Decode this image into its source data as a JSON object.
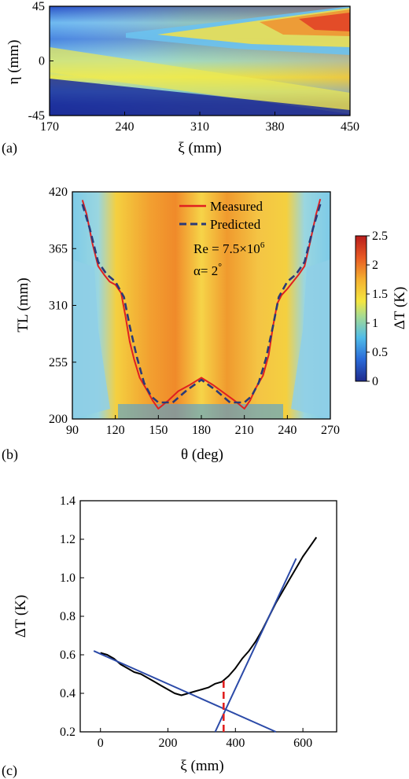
{
  "chart_data": [
    {
      "type": "heatmap",
      "panel_label": "(a)",
      "xlabel": "ξ (mm)",
      "ylabel": "η (mm)",
      "xlim": [
        170,
        450
      ],
      "ylim": [
        -45,
        45
      ],
      "x_ticks": [
        "170",
        "240",
        "310",
        "380",
        "450"
      ],
      "y_ticks": [
        "45",
        "0",
        "-45"
      ],
      "colors": {
        "low": "#1f3fa8",
        "mid": "#f0e640",
        "high": "#e03020"
      }
    },
    {
      "type": "heatmap",
      "panel_label": "(b)",
      "xlabel": "θ (deg)",
      "ylabel": "TL (mm)",
      "xlim": [
        90,
        270
      ],
      "ylim": [
        200,
        420
      ],
      "x_ticks": [
        "90",
        "120",
        "150",
        "180",
        "210",
        "240",
        "270"
      ],
      "y_ticks": [
        "420",
        "365",
        "310",
        "255",
        "200"
      ],
      "colorbar": {
        "label": "ΔT (K)",
        "range": [
          0,
          2.5
        ],
        "ticks": [
          "2.5",
          "2",
          "1.5",
          "1",
          "0.5",
          "0"
        ]
      },
      "legend": [
        "Measured",
        "Predicted"
      ],
      "annotations": [
        "Re = 7.5×10",
        "6",
        "α= 2",
        "°"
      ],
      "series": [
        {
          "name": "Measured",
          "color": "#e02020",
          "style": "solid",
          "x": [
            97,
            100,
            104,
            108,
            112,
            116,
            120,
            124,
            127,
            130,
            133,
            137,
            142,
            146,
            150,
            157,
            164,
            172,
            180,
            188,
            196,
            203,
            210,
            214,
            218,
            223,
            227,
            230,
            233,
            236,
            240,
            244,
            248,
            252,
            256,
            260,
            263
          ],
          "y": [
            412,
            398,
            370,
            348,
            340,
            333,
            330,
            322,
            300,
            275,
            258,
            240,
            228,
            218,
            210,
            218,
            227,
            233,
            240,
            233,
            225,
            218,
            210,
            218,
            230,
            242,
            262,
            290,
            312,
            320,
            326,
            333,
            340,
            348,
            372,
            398,
            413
          ]
        },
        {
          "name": "Predicted",
          "color": "#2a3a78",
          "style": "dashed",
          "x": [
            97,
            102,
            108,
            114,
            120,
            126,
            130,
            135,
            140,
            145,
            150,
            160,
            170,
            180,
            190,
            200,
            210,
            215,
            220,
            225,
            230,
            234,
            240,
            246,
            252,
            258,
            263
          ],
          "y": [
            408,
            385,
            352,
            340,
            333,
            318,
            290,
            260,
            235,
            222,
            216,
            216,
            228,
            238,
            228,
            216,
            216,
            222,
            235,
            258,
            290,
            318,
            333,
            340,
            352,
            385,
            408
          ]
        }
      ]
    },
    {
      "type": "line",
      "panel_label": "(c)",
      "xlabel": "ξ (mm)",
      "ylabel": "ΔT (K)",
      "xlim": [
        -60,
        700
      ],
      "ylim": [
        0.2,
        1.4
      ],
      "x_ticks": [
        "0",
        "200",
        "400",
        "600"
      ],
      "y_ticks": [
        "1.4",
        "1.2",
        "1.0",
        "0.8",
        "0.6",
        "0.4",
        "0.2"
      ],
      "series": [
        {
          "name": "",
          "color": "#000000",
          "style": "solid",
          "x": [
            0,
            20,
            40,
            60,
            80,
            100,
            120,
            140,
            160,
            180,
            200,
            220,
            240,
            260,
            280,
            300,
            320,
            340,
            360,
            380,
            400,
            420,
            440,
            460,
            480,
            500,
            520,
            540,
            560,
            580,
            600,
            620,
            640
          ],
          "y": [
            0.61,
            0.6,
            0.58,
            0.55,
            0.53,
            0.51,
            0.5,
            0.48,
            0.46,
            0.44,
            0.42,
            0.4,
            0.39,
            0.4,
            0.41,
            0.42,
            0.43,
            0.45,
            0.46,
            0.49,
            0.53,
            0.58,
            0.62,
            0.67,
            0.73,
            0.8,
            0.87,
            0.93,
            0.99,
            1.05,
            1.11,
            1.16,
            1.21
          ]
        },
        {
          "name": "",
          "color": "#2b4aa8",
          "style": "solid",
          "x": [
            -20,
            520
          ],
          "y": [
            0.62,
            0.2
          ]
        },
        {
          "name": "",
          "color": "#2b4aa8",
          "style": "solid",
          "x": [
            340,
            580
          ],
          "y": [
            0.2,
            1.1
          ]
        },
        {
          "name": "",
          "color": "#e02020",
          "style": "dashed",
          "x": [
            365,
            365
          ],
          "y": [
            0.2,
            0.47
          ]
        }
      ]
    }
  ]
}
